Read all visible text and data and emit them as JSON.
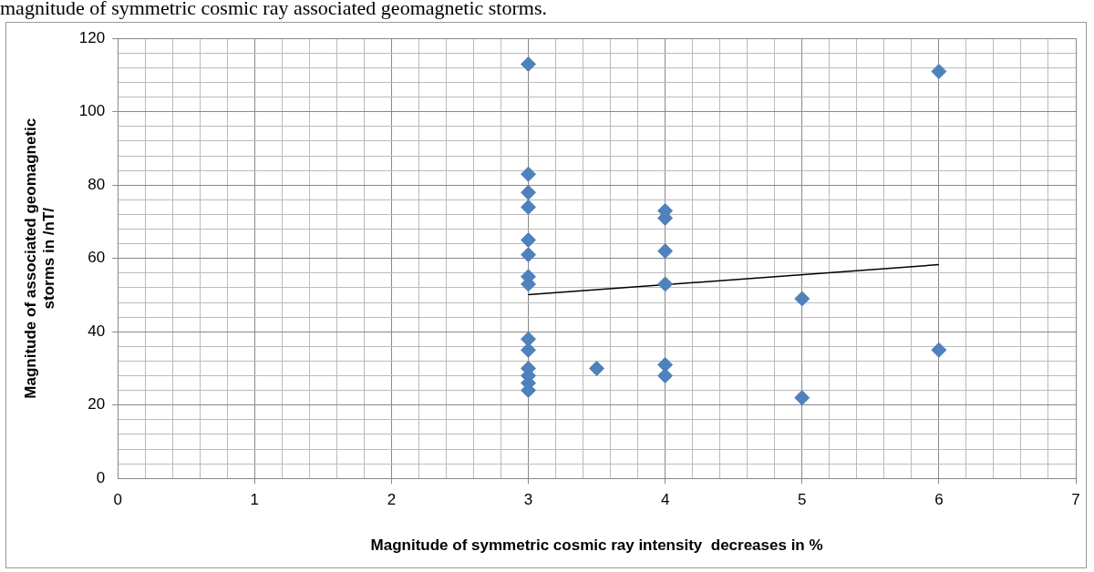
{
  "chart_data": {
    "type": "scatter",
    "xlabel": "Magnitude of symmetric cosmic ray intensity  decreases in %",
    "ylabel": "Magnitude of associated geomagnetic storms in /nT/",
    "annotations": [
      "magnitude of symmetric cosmic ray associated geomagnetic storms."
    ],
    "series": [
      {
        "color": "#4f81bd",
        "marker": "diamond",
        "x": [
          3,
          3,
          3,
          3,
          3,
          3,
          3,
          3,
          3,
          3,
          3,
          3,
          3,
          3,
          3.5,
          4,
          4,
          4,
          4,
          4,
          4,
          5,
          5,
          6,
          6
        ],
        "values": [
          113,
          83,
          78,
          74,
          65,
          61,
          55,
          53,
          38,
          35,
          30,
          28,
          26,
          24,
          30,
          73,
          71,
          62,
          53,
          31,
          28,
          49,
          22,
          111,
          35
        ]
      },
      {
        "type": "line",
        "color": "#000000",
        "marker": "none",
        "x": [
          3,
          6
        ],
        "values": [
          50.1,
          58.3
        ]
      }
    ],
    "xlim": [
      0,
      7
    ],
    "ylim": [
      0,
      120
    ],
    "xticks": [
      0,
      {
        "value": 0.2,
        "label": null
      },
      {
        "value": 0.4,
        "label": null
      },
      {
        "value": 0.6,
        "label": null
      },
      {
        "value": 0.8,
        "label": null
      },
      1,
      {
        "value": 1.2,
        "label": null
      },
      {
        "value": 1.4,
        "label": null
      },
      {
        "value": 1.6,
        "label": null
      },
      {
        "value": 1.8,
        "label": null
      },
      2,
      {
        "value": 2.2,
        "label": null
      },
      {
        "value": 2.4,
        "label": null
      },
      {
        "value": 2.6,
        "label": null
      },
      {
        "value": 2.8,
        "label": null
      },
      3,
      {
        "value": 3.2,
        "label": null
      },
      {
        "value": 3.4,
        "label": null
      },
      {
        "value": 3.6,
        "label": null
      },
      {
        "value": 3.8,
        "label": null
      },
      4,
      {
        "value": 4.2,
        "label": null
      },
      {
        "value": 4.4,
        "label": null
      },
      {
        "value": 4.6,
        "label": null
      },
      {
        "value": 4.8,
        "label": null
      },
      5,
      {
        "value": 5.2,
        "label": null
      },
      {
        "value": 5.4,
        "label": null
      },
      {
        "value": 5.6,
        "label": null
      },
      {
        "value": 5.8,
        "label": null
      },
      6,
      {
        "value": 6.2,
        "label": null
      },
      {
        "value": 6.4,
        "label": null
      },
      {
        "value": 6.6,
        "label": null
      },
      {
        "value": 6.8,
        "label": null
      },
      7
    ],
    "yticks": [
      0,
      {
        "value": 4,
        "label": null
      },
      {
        "value": 8,
        "label": null
      },
      {
        "value": 12,
        "label": null
      },
      {
        "value": 16,
        "label": null
      },
      20,
      {
        "value": 24,
        "label": null
      },
      {
        "value": 28,
        "label": null
      },
      {
        "value": 32,
        "label": null
      },
      {
        "value": 36,
        "label": null
      },
      40,
      {
        "value": 44,
        "label": null
      },
      {
        "value": 48,
        "label": null
      },
      {
        "value": 52,
        "label": null
      },
      {
        "value": 56,
        "label": null
      },
      60,
      {
        "value": 64,
        "label": null
      },
      {
        "value": 68,
        "label": null
      },
      {
        "value": 72,
        "label": null
      },
      {
        "value": 76,
        "label": null
      },
      80,
      {
        "value": 84,
        "label": null
      },
      {
        "value": 88,
        "label": null
      },
      {
        "value": 92,
        "label": null
      },
      {
        "value": 96,
        "label": null
      },
      100,
      {
        "value": 104,
        "label": null
      },
      {
        "value": 108,
        "label": null
      },
      {
        "value": 112,
        "label": null
      },
      {
        "value": 116,
        "label": null
      },
      120
    ],
    "grid": true,
    "legend": false
  }
}
